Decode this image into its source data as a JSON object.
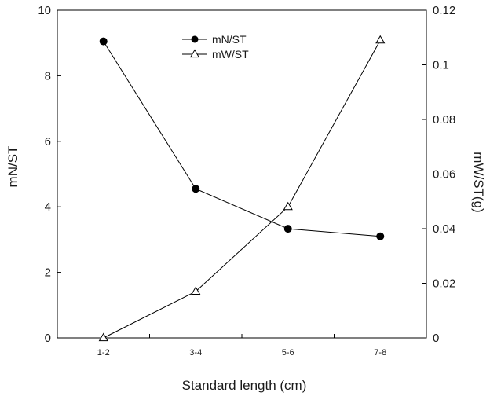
{
  "chart_data": {
    "type": "line",
    "categories": [
      "1-2",
      "3-4",
      "5-6",
      "7-8"
    ],
    "xlabel": "Standard length (cm)",
    "ylabel_left": "mN/ST",
    "ylabel_right": "mW/ST(g)",
    "ylim_left": [
      0,
      10
    ],
    "yticks_left": [
      0,
      2,
      4,
      6,
      8,
      10
    ],
    "ylim_right": [
      0,
      0.12
    ],
    "yticks_right": [
      "0",
      "0.02",
      "0.04",
      "0.06",
      "0.08",
      "0.1",
      "0.12"
    ],
    "grid": false,
    "legend_position": "top-center",
    "series": [
      {
        "name": "mN/ST",
        "axis": "left",
        "marker": "filled-circle",
        "color": "#000000",
        "values": [
          9.05,
          4.55,
          3.33,
          3.1
        ]
      },
      {
        "name": "mW/ST",
        "axis": "right",
        "marker": "open-triangle",
        "color": "#000000",
        "values": [
          0.0,
          0.017,
          0.048,
          0.109
        ]
      }
    ]
  }
}
